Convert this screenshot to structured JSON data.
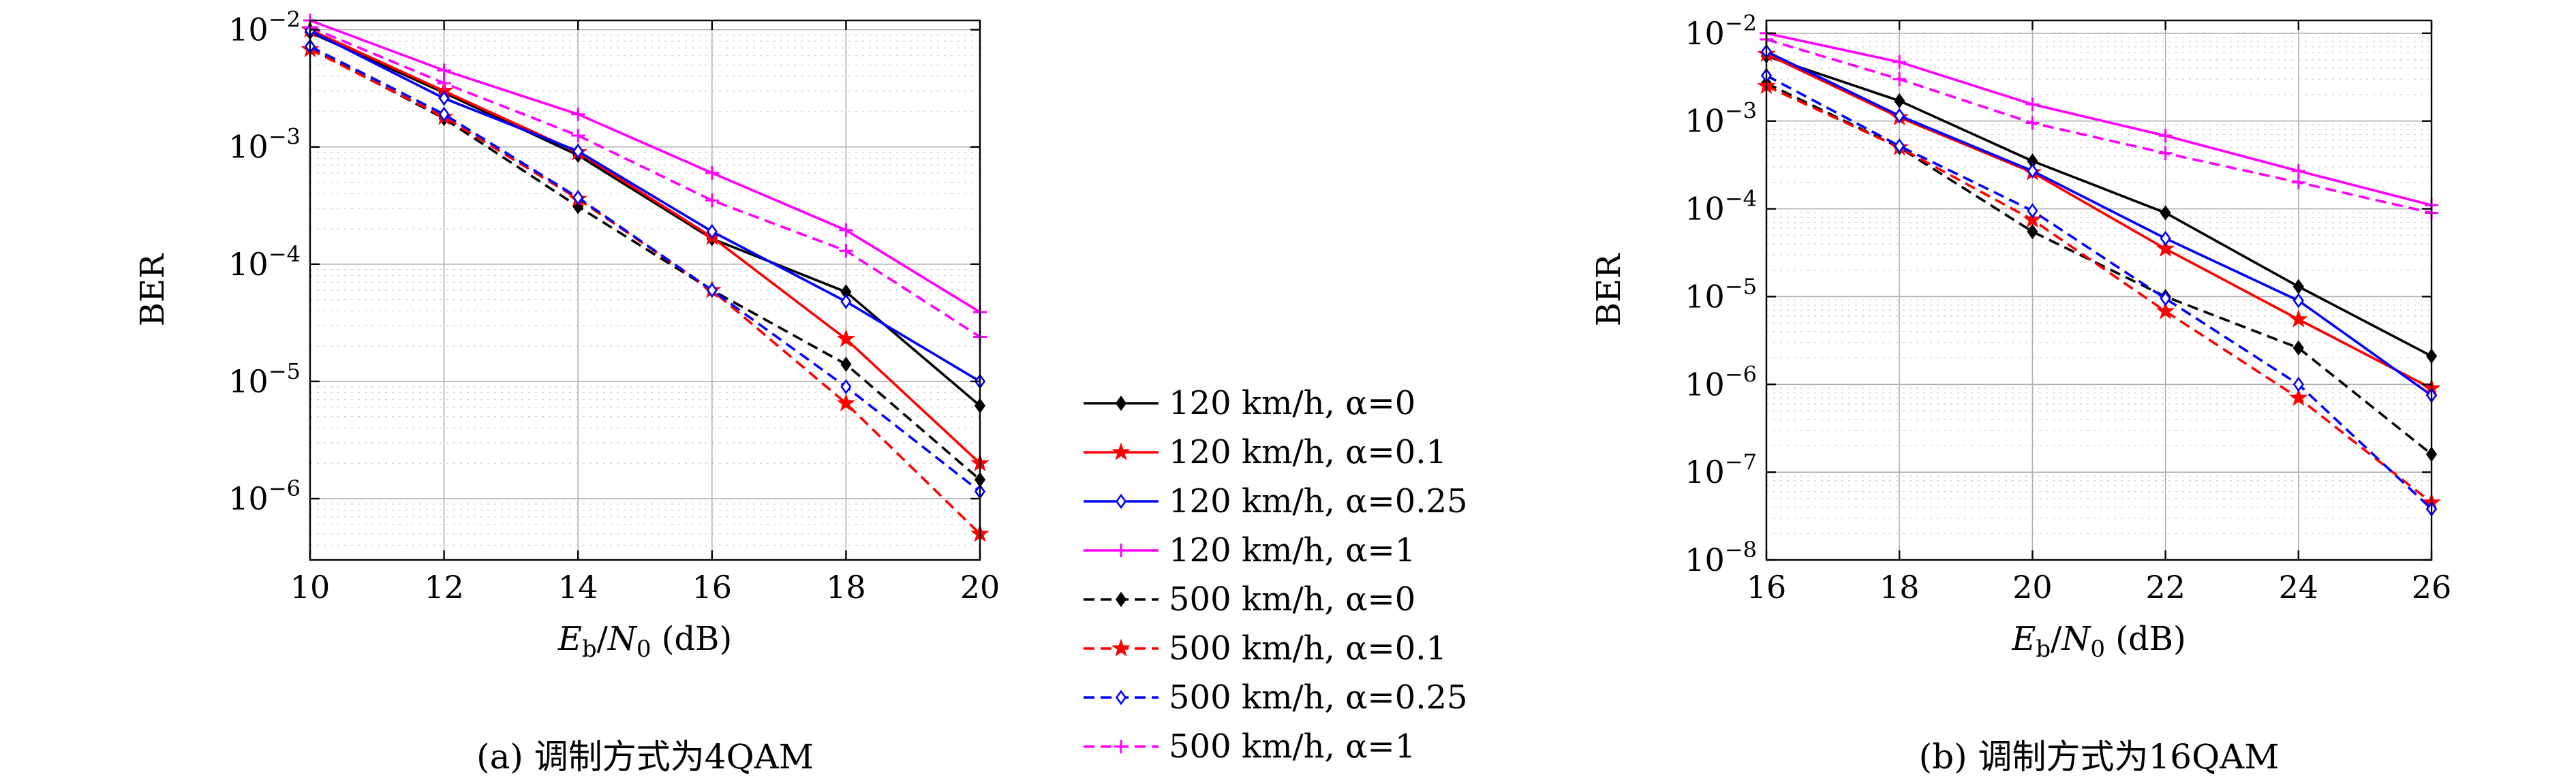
{
  "legend": {
    "entries": [
      {
        "label": "120 km/h, α=0",
        "color": "#000000",
        "marker": "diamond",
        "dash": "solid"
      },
      {
        "label": "120 km/h, α=0.1",
        "color": "#ff0000",
        "marker": "star",
        "dash": "solid"
      },
      {
        "label": "120 km/h, α=0.25",
        "color": "#0000ff",
        "marker": "diamond-open",
        "dash": "solid"
      },
      {
        "label": "120 km/h, α=1",
        "color": "#ff00ff",
        "marker": "plus",
        "dash": "solid"
      },
      {
        "label": "500 km/h, α=0",
        "color": "#000000",
        "marker": "diamond",
        "dash": "dashed"
      },
      {
        "label": "500 km/h, α=0.1",
        "color": "#ff0000",
        "marker": "star",
        "dash": "dashed"
      },
      {
        "label": "500 km/h, α=0.25",
        "color": "#0000ff",
        "marker": "diamond-open",
        "dash": "dashed"
      },
      {
        "label": "500 km/h, α=1",
        "color": "#ff00ff",
        "marker": "plus",
        "dash": "dashed"
      }
    ]
  },
  "chart_data": [
    {
      "type": "line",
      "caption": "(a) 调制方式为4QAM",
      "xlabel": "Eb/N0 (dB)",
      "ylabel": "BER",
      "yscale": "log",
      "grid": true,
      "x": [
        10,
        12,
        14,
        16,
        18,
        20
      ],
      "xticks": [
        "10",
        "12",
        "14",
        "16",
        "18",
        "20"
      ],
      "xlim": [
        10,
        20
      ],
      "ylim": [
        3e-07,
        0.012
      ],
      "yticks": [
        {
          "base": "10",
          "exp": "−2"
        },
        {
          "base": "10",
          "exp": "−3"
        },
        {
          "base": "10",
          "exp": "−4"
        },
        {
          "base": "10",
          "exp": "−5"
        },
        {
          "base": "10",
          "exp": "−6"
        }
      ],
      "series": [
        {
          "name": "120 km/h, α=0",
          "values": [
            0.0095,
            0.0029,
            0.00085,
            0.000165,
            5.8e-05,
            6.2e-06
          ]
        },
        {
          "name": "120 km/h, α=0.1",
          "values": [
            0.01,
            0.003,
            0.0009,
            0.00017,
            2.3e-05,
            2e-06
          ]
        },
        {
          "name": "120 km/h, α=0.25",
          "values": [
            0.0098,
            0.0026,
            0.00092,
            0.00019,
            4.8e-05,
            1e-05
          ]
        },
        {
          "name": "120 km/h, α=1",
          "values": [
            0.012,
            0.0045,
            0.0019,
            0.0006,
            0.000195,
            3.9e-05
          ]
        },
        {
          "name": "500 km/h, α=0",
          "values": [
            0.007,
            0.00175,
            0.00031,
            6e-05,
            1.4e-05,
            1.45e-06
          ]
        },
        {
          "name": "500 km/h, α=0.1",
          "values": [
            0.0068,
            0.0018,
            0.00036,
            6e-05,
            6.5e-06,
            5e-07
          ]
        },
        {
          "name": "500 km/h, α=0.25",
          "values": [
            0.0072,
            0.0019,
            0.00037,
            6e-05,
            9e-06,
            1.15e-06
          ]
        },
        {
          "name": "500 km/h, α=1",
          "values": [
            0.0105,
            0.0035,
            0.00125,
            0.00035,
            0.00013,
            2.4e-05
          ]
        }
      ]
    },
    {
      "type": "line",
      "caption": "(b) 调制方式为16QAM",
      "xlabel": "Eb/N0 (dB)",
      "ylabel": "BER",
      "yscale": "log",
      "grid": true,
      "x": [
        16,
        18,
        20,
        22,
        24,
        26
      ],
      "xticks": [
        "16",
        "18",
        "20",
        "22",
        "24",
        "26"
      ],
      "xlim": [
        16,
        26
      ],
      "ylim": [
        1e-08,
        0.014
      ],
      "yticks": [
        {
          "base": "10",
          "exp": "−2"
        },
        {
          "base": "10",
          "exp": "−3"
        },
        {
          "base": "10",
          "exp": "−4"
        },
        {
          "base": "10",
          "exp": "−5"
        },
        {
          "base": "10",
          "exp": "−6"
        },
        {
          "base": "10",
          "exp": "−7"
        },
        {
          "base": "10",
          "exp": "−8"
        }
      ],
      "series": [
        {
          "name": "120 km/h, α=0",
          "values": [
            0.0055,
            0.0017,
            0.00035,
            9e-05,
            1.3e-05,
            2.1e-06
          ]
        },
        {
          "name": "120 km/h, α=0.1",
          "values": [
            0.0058,
            0.0011,
            0.00026,
            3.5e-05,
            5.5e-06,
            9e-07
          ]
        },
        {
          "name": "120 km/h, α=0.25",
          "values": [
            0.0062,
            0.00115,
            0.00027,
            4.6e-05,
            9e-06,
            7.5e-07
          ]
        },
        {
          "name": "120 km/h, α=1",
          "values": [
            0.01,
            0.0047,
            0.00155,
            0.00068,
            0.00027,
            0.00011
          ]
        },
        {
          "name": "500 km/h, α=0",
          "values": [
            0.0027,
            0.0005,
            5.5e-05,
            1e-05,
            2.6e-06,
            1.6e-07
          ]
        },
        {
          "name": "500 km/h, α=0.1",
          "values": [
            0.0025,
            0.0005,
            7.5e-05,
            6.8e-06,
            7e-07,
            4.5e-08
          ]
        },
        {
          "name": "500 km/h, α=0.25",
          "values": [
            0.0033,
            0.00052,
            9.5e-05,
            9.5e-06,
            1e-06,
            3.8e-08
          ]
        },
        {
          "name": "500 km/h, α=1",
          "values": [
            0.0085,
            0.003,
            0.00095,
            0.00043,
            0.0002,
            9e-05
          ]
        }
      ]
    }
  ]
}
